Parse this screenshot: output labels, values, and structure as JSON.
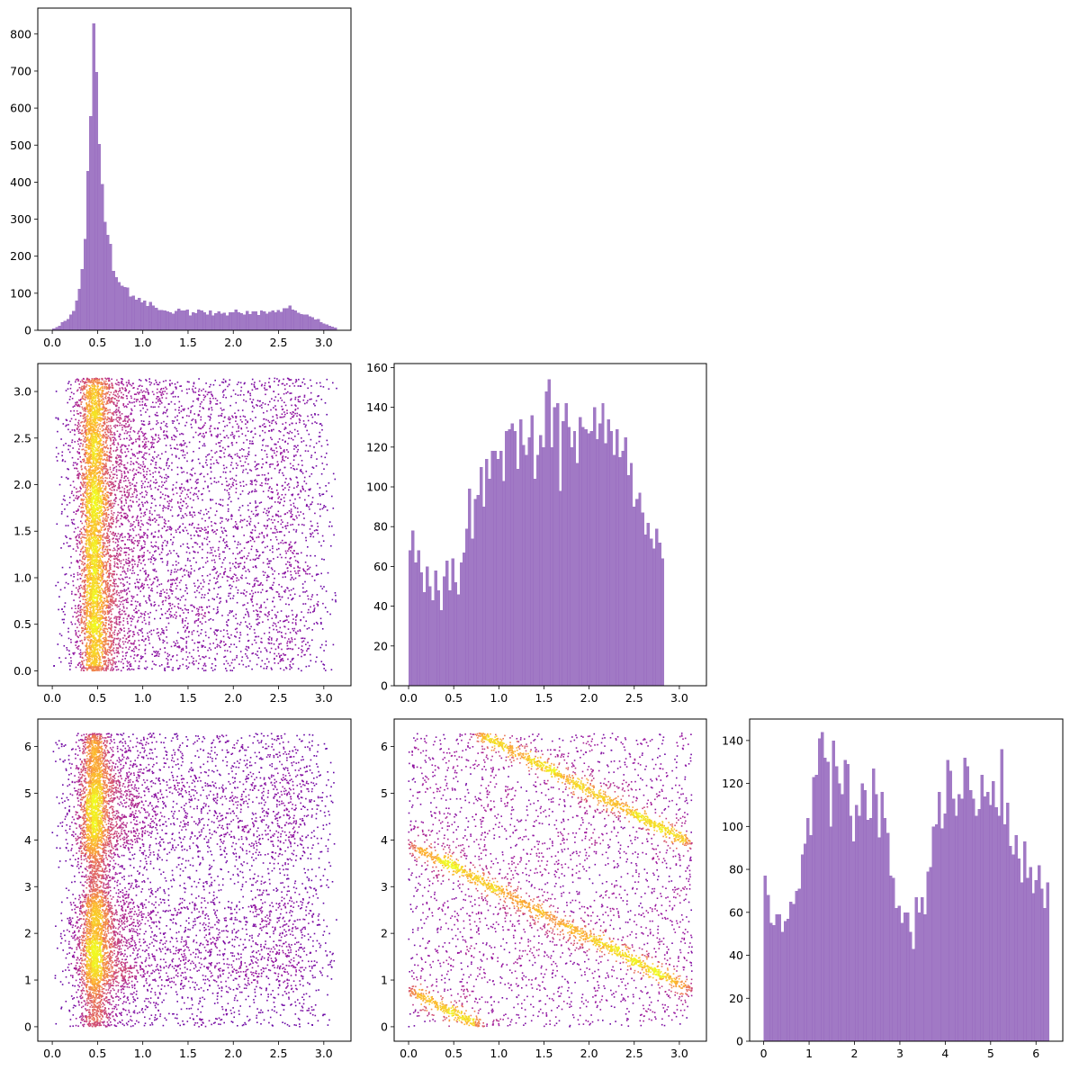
{
  "figure": {
    "background": "#ffffff",
    "bar_color": "#9467bd",
    "colormap": [
      "#0d0887",
      "#5c01a6",
      "#9c179e",
      "#cc4778",
      "#ed7953",
      "#fdb42f",
      "#f0f921"
    ]
  },
  "chart_data": [
    {
      "id": "hist-var0",
      "type": "bar",
      "title": "",
      "xlabel": "",
      "ylabel": "",
      "bin_start": 0.0,
      "bin_width": 0.0314159,
      "counts": [
        5,
        9,
        12,
        22,
        26,
        30,
        42,
        52,
        80,
        112,
        165,
        247,
        430,
        578,
        829,
        697,
        503,
        395,
        293,
        258,
        233,
        160,
        143,
        130,
        120,
        117,
        115,
        91,
        94,
        83,
        87,
        75,
        80,
        66,
        76,
        67,
        61,
        55,
        55,
        54,
        51,
        49,
        45,
        52,
        58,
        54,
        53,
        56,
        40,
        49,
        46,
        56,
        53,
        48,
        43,
        53,
        40,
        46,
        51,
        45,
        47,
        40,
        48,
        49,
        56,
        49,
        46,
        43,
        52,
        44,
        51,
        51,
        41,
        54,
        51,
        45,
        50,
        54,
        48,
        55,
        50,
        60,
        59,
        67,
        56,
        54,
        47,
        44,
        43,
        42,
        38,
        35,
        29,
        30,
        22,
        18,
        16,
        12,
        10,
        7
      ],
      "xlim": [
        -0.16,
        3.3
      ],
      "ylim": [
        0,
        870
      ],
      "xticks": [
        0.0,
        0.5,
        1.0,
        1.5,
        2.0,
        2.5,
        3.0
      ],
      "xtick_labels": [
        "0.0",
        "0.5",
        "1.0",
        "1.5",
        "2.0",
        "2.5",
        "3.0"
      ],
      "yticks": [
        0,
        100,
        200,
        300,
        400,
        500,
        600,
        700,
        800
      ],
      "ytick_labels": [
        "0",
        "100",
        "200",
        "300",
        "400",
        "500",
        "600",
        "700",
        "800"
      ]
    },
    {
      "id": "hist-var1",
      "type": "bar",
      "title": "",
      "xlabel": "",
      "ylabel": "",
      "bin_start": 0.0,
      "bin_width": 0.0314159,
      "counts": [
        68,
        78,
        62,
        68,
        57,
        47,
        60,
        50,
        43,
        58,
        48,
        38,
        55,
        63,
        48,
        64,
        52,
        46,
        62,
        67,
        79,
        99,
        74,
        94,
        96,
        110,
        90,
        114,
        104,
        118,
        118,
        114,
        118,
        103,
        128,
        129,
        132,
        128,
        109,
        134,
        121,
        116,
        125,
        136,
        104,
        116,
        126,
        120,
        148,
        154,
        120,
        140,
        142,
        98,
        133,
        142,
        130,
        120,
        128,
        112,
        135,
        130,
        129,
        127,
        128,
        140,
        124,
        132,
        142,
        122,
        134,
        128,
        116,
        129,
        115,
        118,
        125,
        106,
        112,
        90,
        94,
        97,
        87,
        76,
        82,
        74,
        69,
        79,
        72,
        64
      ],
      "xlim": [
        -0.16,
        3.3
      ],
      "ylim": [
        0,
        162
      ],
      "xticks": [
        0.0,
        0.5,
        1.0,
        1.5,
        2.0,
        2.5,
        3.0
      ],
      "xtick_labels": [
        "0.0",
        "0.5",
        "1.0",
        "1.5",
        "2.0",
        "2.5",
        "3.0"
      ],
      "yticks": [
        0,
        20,
        40,
        60,
        80,
        100,
        120,
        140,
        160
      ],
      "ytick_labels": [
        "0",
        "20",
        "40",
        "60",
        "80",
        "100",
        "120",
        "140",
        "160"
      ]
    },
    {
      "id": "hist-var2",
      "type": "bar",
      "title": "",
      "xlabel": "",
      "ylabel": "",
      "bin_start": 0.0,
      "bin_width": 0.0628318,
      "counts": [
        77,
        68,
        55,
        54,
        59,
        59,
        51,
        56,
        57,
        65,
        64,
        70,
        71,
        87,
        92,
        104,
        96,
        123,
        124,
        141,
        144,
        132,
        130,
        100,
        140,
        128,
        120,
        115,
        131,
        129,
        105,
        93,
        110,
        105,
        120,
        117,
        103,
        104,
        127,
        115,
        95,
        116,
        104,
        97,
        77,
        76,
        62,
        63,
        55,
        60,
        60,
        51,
        43,
        67,
        60,
        67,
        59,
        79,
        81,
        100,
        101,
        116,
        99,
        106,
        131,
        126,
        113,
        105,
        115,
        113,
        132,
        128,
        117,
        113,
        105,
        108,
        124,
        114,
        116,
        110,
        121,
        109,
        105,
        136,
        101,
        111,
        91,
        87,
        96,
        85,
        74,
        93,
        76,
        81,
        69,
        75,
        82,
        71,
        62,
        74
      ],
      "xlim": [
        -0.31,
        6.59
      ],
      "ylim": [
        0,
        150
      ],
      "xticks": [
        0,
        1,
        2,
        3,
        4,
        5,
        6
      ],
      "xtick_labels": [
        "0",
        "1",
        "2",
        "3",
        "4",
        "5",
        "6"
      ],
      "yticks": [
        0,
        20,
        40,
        60,
        80,
        100,
        120,
        140
      ],
      "ytick_labels": [
        "0",
        "20",
        "40",
        "60",
        "80",
        "100",
        "120",
        "140"
      ]
    },
    {
      "id": "scatter-var0-var1",
      "type": "scatter",
      "title": "",
      "xlabel": "",
      "ylabel": "",
      "n_points": 9000,
      "seed": 11,
      "description": "x concentrated near 0.42 with a long tail to 3.14; y uniform over [0, 3.14]; color by local density",
      "xlim": [
        -0.16,
        3.3
      ],
      "ylim": [
        -0.16,
        3.3
      ],
      "xticks": [
        0.0,
        0.5,
        1.0,
        1.5,
        2.0,
        2.5,
        3.0
      ],
      "xtick_labels": [
        "0.0",
        "0.5",
        "1.0",
        "1.5",
        "2.0",
        "2.5",
        "3.0"
      ],
      "yticks": [
        0.0,
        0.5,
        1.0,
        1.5,
        2.0,
        2.5,
        3.0
      ],
      "ytick_labels": [
        "0.0",
        "0.5",
        "1.0",
        "1.5",
        "2.0",
        "2.5",
        "3.0"
      ]
    },
    {
      "id": "scatter-var0-var2",
      "type": "scatter",
      "title": "",
      "xlabel": "",
      "ylabel": "",
      "n_points": 9000,
      "seed": 23,
      "description": "x concentrated near 0.42 with a long tail to 3.14; y in [0, 6.28] with bands at 1-3 and 4-6; color by local density",
      "xlim": [
        -0.16,
        3.3
      ],
      "ylim": [
        -0.31,
        6.59
      ],
      "xticks": [
        0.0,
        0.5,
        1.0,
        1.5,
        2.0,
        2.5,
        3.0
      ],
      "xtick_labels": [
        "0.0",
        "0.5",
        "1.0",
        "1.5",
        "2.0",
        "2.5",
        "3.0"
      ],
      "yticks": [
        0,
        1,
        2,
        3,
        4,
        5,
        6
      ],
      "ytick_labels": [
        "0",
        "1",
        "2",
        "3",
        "4",
        "5",
        "6"
      ]
    },
    {
      "id": "scatter-var1-var2",
      "type": "scatter",
      "title": "",
      "xlabel": "",
      "ylabel": "",
      "n_points": 5200,
      "seed": 37,
      "description": "dense diagonal bands following y = c - x (mod 2*pi) with c near 0.8, 3.9 and 7.0, plus diffuse background",
      "line_offsets": [
        0.8,
        3.92,
        7.06
      ],
      "xlim": [
        -0.16,
        3.3
      ],
      "ylim": [
        -0.31,
        6.59
      ],
      "xticks": [
        0.0,
        0.5,
        1.0,
        1.5,
        2.0,
        2.5,
        3.0
      ],
      "xtick_labels": [
        "0.0",
        "0.5",
        "1.0",
        "1.5",
        "2.0",
        "2.5",
        "3.0"
      ],
      "yticks": [
        0,
        1,
        2,
        3,
        4,
        5,
        6
      ],
      "ytick_labels": [
        "0",
        "1",
        "2",
        "3",
        "4",
        "5",
        "6"
      ]
    }
  ]
}
